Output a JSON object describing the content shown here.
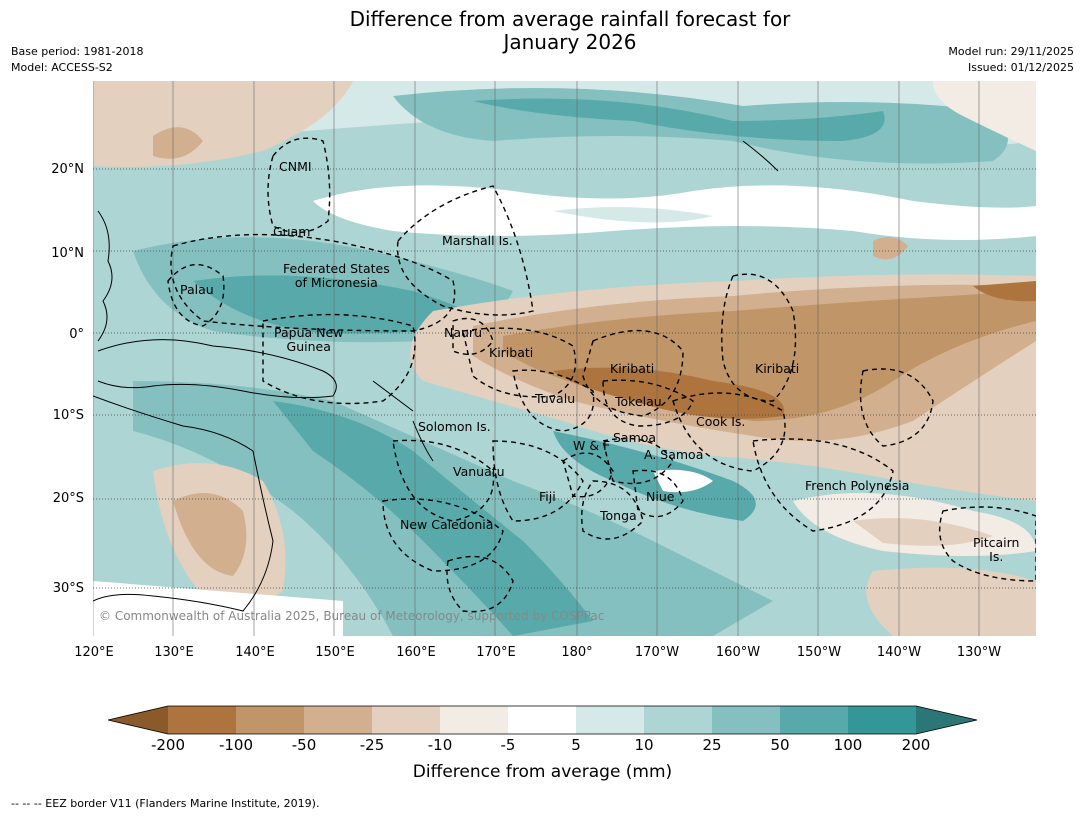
{
  "title_line1": "Difference from average rainfall forecast for",
  "title_line2": "January 2026",
  "meta_left": {
    "base_period": "Base period: 1981-2018",
    "model": "Model: ACCESS-S2"
  },
  "meta_right": {
    "model_run": "Model run: 29/11/2025",
    "issued": "Issued: 01/12/2025"
  },
  "map": {
    "lon_labels": [
      "120°E",
      "130°E",
      "140°E",
      "150°E",
      "160°E",
      "170°E",
      "180°",
      "170°W",
      "160°W",
      "150°W",
      "140°W",
      "130°W"
    ],
    "lat_labels": [
      "20°N",
      "10°N",
      "0°",
      "10°S",
      "20°S",
      "30°S"
    ],
    "regions": {
      "cnmi": "CNMI",
      "guam": "Guam",
      "marshall": "Marshall Is.",
      "fsm_1": "Federated States",
      "fsm_2": "of Micronesia",
      "palau": "Palau",
      "png_1": "Papua New",
      "png_2": "Guinea",
      "nauru": "Nauru",
      "kiribati_west": "Kiribati",
      "kiribati_central": "Kiribati",
      "kiribati_east": "Kiribati",
      "tuvalu": "Tuvalu",
      "tokelau": "Tokelau",
      "cook": "Cook Is.",
      "solomon": "Solomon Is.",
      "wf": "W & F",
      "samoa": "Samoa",
      "asamoa": "A. Samoa",
      "vanuatu": "Vanuatu",
      "fiji": "Fiji",
      "niue": "Niue",
      "tonga": "Tonga",
      "newcal": "New Caledonia",
      "frpoly": "French Polynesia",
      "pitcairn_1": "Pitcairn",
      "pitcairn_2": "Is."
    },
    "credit": "© Commonwealth of Australia 2025, Bureau of Meteorology, supported by COSPPac"
  },
  "colorbar": {
    "title": "Difference from average (mm)",
    "tick_labels": [
      "-200",
      "-100",
      "-50",
      "-25",
      "-10",
      "-5",
      "5",
      "10",
      "25",
      "50",
      "100",
      "200"
    ],
    "colors": {
      "extend_low": "#8b5a2b",
      "b1": "#ad743d",
      "b2": "#c09567",
      "b3": "#d2b08f",
      "b4": "#e3d0be",
      "b5": "#f2ece4",
      "b6": "#ffffff",
      "b7": "#d6e9e9",
      "b8": "#add5d4",
      "b9": "#85c0c0",
      "b10": "#58aaaa",
      "b11": "#339797",
      "extend_high": "#2b7777"
    }
  },
  "footnote": "--  --  -- EEZ border V11 (Flanders Marine Institute, 2019)."
}
